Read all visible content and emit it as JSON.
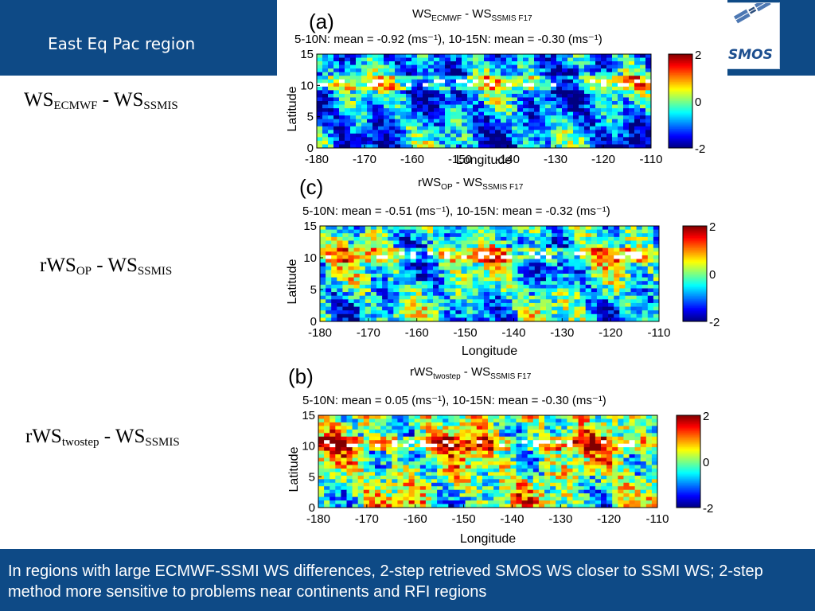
{
  "header": {
    "title": "East Eq Pac region"
  },
  "logo": {
    "text": "SMOS"
  },
  "side_labels": [
    {
      "main": "WS",
      "sub": "ECMWF",
      "rest": "  - WS",
      "sub2": "SSMIS"
    },
    {
      "main": "rWS",
      "sub": "OP",
      "rest": "  - WS",
      "sub2": "SSMIS"
    },
    {
      "main": "rWS",
      "sub": "twostep",
      "rest": "  - WS",
      "sub2": "SSMIS"
    }
  ],
  "footer": {
    "text": "In regions with large ECMWF-SSMI WS differences, 2-step retrieved SMOS WS closer to SSMI WS; 2-step method more sensitive to problems near continents and RFI regions"
  },
  "colors": {
    "header_bg": "#0e4a86",
    "footer_bg": "#0e4a86"
  },
  "chart_data": [
    {
      "type": "heatmap",
      "panel_letter": "(a)",
      "title_parts": [
        "WS",
        "ECMWF",
        " - WS",
        "SSMIS F17"
      ],
      "subtitle": "5-10N: mean = -0.92 (ms⁻¹), 10-15N: mean = -0.30 (ms⁻¹)",
      "ylabel": "Latitude",
      "xlabel": "Longitude",
      "xlim": [
        -180,
        -110
      ],
      "ylim": [
        0,
        15
      ],
      "x_ticks": [
        -180,
        -170,
        -160,
        -150,
        -140,
        -130,
        -120,
        -110
      ],
      "y_ticks": [
        0,
        5,
        10,
        15
      ],
      "colorbar": {
        "min": -2,
        "max": 2,
        "ticks": [
          2,
          0,
          -2
        ]
      },
      "bias": -0.92,
      "noise_scale": 0.9
    },
    {
      "type": "heatmap",
      "panel_letter": "(c)",
      "title_parts": [
        "rWS",
        "OP",
        " - WS",
        "SSMIS F17"
      ],
      "subtitle": "5-10N: mean = -0.51 (ms⁻¹), 10-15N: mean = -0.32 (ms⁻¹)",
      "ylabel": "Latitude",
      "xlabel": "Longitude",
      "xlim": [
        -180,
        -110
      ],
      "ylim": [
        0,
        15
      ],
      "x_ticks": [
        -180,
        -170,
        -160,
        -150,
        -140,
        -130,
        -120,
        -110
      ],
      "y_ticks": [
        0,
        5,
        10,
        15
      ],
      "colorbar": {
        "min": -2,
        "max": 2,
        "ticks": [
          2,
          0,
          -2
        ]
      },
      "bias": -0.51,
      "noise_scale": 1.0
    },
    {
      "type": "heatmap",
      "panel_letter": "(b)",
      "title_parts": [
        "rWS",
        "twostep",
        " - WS",
        "SSMIS F17"
      ],
      "subtitle": "5-10N: mean = 0.05 (ms⁻¹), 10-15N: mean = -0.30 (ms⁻¹)",
      "ylabel": "Latitude",
      "xlabel": "Longitude",
      "xlim": [
        -180,
        -110
      ],
      "ylim": [
        0,
        15
      ],
      "x_ticks": [
        -180,
        -170,
        -160,
        -150,
        -140,
        -130,
        -120,
        -110
      ],
      "y_ticks": [
        0,
        5,
        10,
        15
      ],
      "colorbar": {
        "min": -2,
        "max": 2,
        "ticks": [
          2,
          0,
          -2
        ]
      },
      "bias": 0.05,
      "noise_scale": 1.1
    }
  ]
}
